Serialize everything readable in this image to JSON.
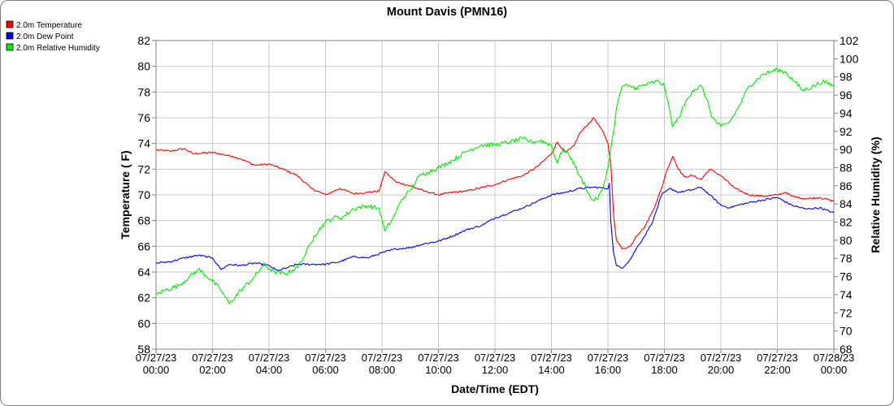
{
  "chart_data": {
    "type": "line",
    "title": "Mount Davis (PMN16)",
    "xlabel": "Date/Time (EDT)",
    "ylabel_left": "Temperature ( F)",
    "ylabel_right": "Relative Humidity (%)",
    "ylim_left": [
      58,
      82
    ],
    "yticks_left": [
      58,
      60,
      62,
      64,
      66,
      68,
      70,
      72,
      74,
      76,
      78,
      80,
      82
    ],
    "ylim_right": [
      68,
      102
    ],
    "yticks_right": [
      68,
      70,
      72,
      74,
      76,
      78,
      80,
      82,
      84,
      86,
      88,
      90,
      92,
      94,
      96,
      98,
      100,
      102
    ],
    "xlim_hours": [
      0,
      24
    ],
    "xticks": [
      {
        "hour": 0,
        "date": "07/27/23",
        "time": "00:00"
      },
      {
        "hour": 2,
        "date": "07/27/23",
        "time": "02:00"
      },
      {
        "hour": 4,
        "date": "07/27/23",
        "time": "04:00"
      },
      {
        "hour": 6,
        "date": "07/27/23",
        "time": "06:00"
      },
      {
        "hour": 8,
        "date": "07/27/23",
        "time": "08:00"
      },
      {
        "hour": 10,
        "date": "07/27/23",
        "time": "10:00"
      },
      {
        "hour": 12,
        "date": "07/27/23",
        "time": "12:00"
      },
      {
        "hour": 14,
        "date": "07/27/23",
        "time": "14:00"
      },
      {
        "hour": 16,
        "date": "07/27/23",
        "time": "16:00"
      },
      {
        "hour": 18,
        "date": "07/27/23",
        "time": "18:00"
      },
      {
        "hour": 20,
        "date": "07/27/23",
        "time": "20:00"
      },
      {
        "hour": 22,
        "date": "07/27/23",
        "time": "22:00"
      },
      {
        "hour": 24,
        "date": "07/28/23",
        "time": "00:00"
      }
    ],
    "grid": true,
    "legend_position": "top-left",
    "series": [
      {
        "name": "2.0m Temperature",
        "axis": "left",
        "color": "#ff0000",
        "points": [
          [
            0,
            73.5
          ],
          [
            0.5,
            73.4
          ],
          [
            1,
            73.6
          ],
          [
            1.3,
            73.2
          ],
          [
            2,
            73.3
          ],
          [
            2.7,
            73.0
          ],
          [
            3,
            72.8
          ],
          [
            3.5,
            72.3
          ],
          [
            4,
            72.4
          ],
          [
            4.5,
            72.0
          ],
          [
            5,
            71.5
          ],
          [
            5.5,
            70.5
          ],
          [
            6,
            70.0
          ],
          [
            6.5,
            70.5
          ],
          [
            7,
            70.1
          ],
          [
            7.5,
            70.2
          ],
          [
            7.9,
            70.3
          ],
          [
            8.1,
            71.8
          ],
          [
            8.5,
            71.0
          ],
          [
            9,
            70.7
          ],
          [
            9.5,
            70.3
          ],
          [
            10,
            70.0
          ],
          [
            10.5,
            70.2
          ],
          [
            11,
            70.3
          ],
          [
            12,
            70.8
          ],
          [
            12.5,
            71.2
          ],
          [
            13,
            71.5
          ],
          [
            13.5,
            72.2
          ],
          [
            14,
            73.2
          ],
          [
            14.2,
            74.1
          ],
          [
            14.5,
            73.3
          ],
          [
            14.8,
            73.8
          ],
          [
            15,
            74.8
          ],
          [
            15.3,
            75.5
          ],
          [
            15.5,
            76.0
          ],
          [
            15.8,
            75.0
          ],
          [
            16.0,
            74.0
          ],
          [
            16.1,
            72.5
          ],
          [
            16.2,
            68.5
          ],
          [
            16.3,
            66.5
          ],
          [
            16.5,
            65.8
          ],
          [
            16.8,
            66.0
          ],
          [
            17,
            66.8
          ],
          [
            17.3,
            67.5
          ],
          [
            17.6,
            68.8
          ],
          [
            17.9,
            70.5
          ],
          [
            18.1,
            72.0
          ],
          [
            18.3,
            73.0
          ],
          [
            18.5,
            72.0
          ],
          [
            18.7,
            71.4
          ],
          [
            19,
            71.5
          ],
          [
            19.3,
            71.2
          ],
          [
            19.6,
            72.0
          ],
          [
            20,
            71.5
          ],
          [
            20.5,
            70.5
          ],
          [
            21,
            70.0
          ],
          [
            21.5,
            69.9
          ],
          [
            22,
            70.0
          ],
          [
            22.3,
            70.2
          ],
          [
            22.5,
            69.9
          ],
          [
            23,
            69.7
          ],
          [
            23.5,
            69.8
          ],
          [
            24,
            69.5
          ]
        ]
      },
      {
        "name": "2.0m Dew Point",
        "axis": "left",
        "color": "#0000ff",
        "points": [
          [
            0,
            64.7
          ],
          [
            0.5,
            64.8
          ],
          [
            1,
            65.1
          ],
          [
            1.5,
            65.3
          ],
          [
            2,
            65.1
          ],
          [
            2.3,
            64.2
          ],
          [
            2.6,
            64.6
          ],
          [
            3,
            64.5
          ],
          [
            3.5,
            64.7
          ],
          [
            4,
            64.5
          ],
          [
            4.3,
            64.1
          ],
          [
            4.6,
            64.3
          ],
          [
            5,
            64.6
          ],
          [
            5.5,
            64.6
          ],
          [
            6,
            64.6
          ],
          [
            6.5,
            64.8
          ],
          [
            7,
            65.2
          ],
          [
            7.5,
            65.1
          ],
          [
            8,
            65.5
          ],
          [
            8.5,
            65.8
          ],
          [
            9,
            65.9
          ],
          [
            9.5,
            66.2
          ],
          [
            10,
            66.4
          ],
          [
            10.5,
            66.8
          ],
          [
            11,
            67.3
          ],
          [
            11.5,
            67.6
          ],
          [
            12,
            68.2
          ],
          [
            12.5,
            68.6
          ],
          [
            13,
            69.0
          ],
          [
            13.5,
            69.5
          ],
          [
            14,
            70.0
          ],
          [
            14.5,
            70.2
          ],
          [
            15,
            70.5
          ],
          [
            15.5,
            70.6
          ],
          [
            16.0,
            70.5
          ],
          [
            16.05,
            70.9
          ],
          [
            16.1,
            68.0
          ],
          [
            16.2,
            65.5
          ],
          [
            16.3,
            64.5
          ],
          [
            16.5,
            64.3
          ],
          [
            16.8,
            65.0
          ],
          [
            17,
            65.8
          ],
          [
            17.3,
            66.8
          ],
          [
            17.6,
            68.0
          ],
          [
            17.9,
            70.0
          ],
          [
            18.2,
            70.5
          ],
          [
            18.5,
            70.2
          ],
          [
            19,
            70.4
          ],
          [
            19.3,
            70.6
          ],
          [
            19.6,
            70.0
          ],
          [
            20,
            69.2
          ],
          [
            20.3,
            69.0
          ],
          [
            20.6,
            69.2
          ],
          [
            21,
            69.4
          ],
          [
            21.5,
            69.6
          ],
          [
            22,
            69.8
          ],
          [
            22.5,
            69.2
          ],
          [
            23,
            68.9
          ],
          [
            23.5,
            69.0
          ],
          [
            24,
            68.6
          ]
        ]
      },
      {
        "name": "2.0m Relative Humidity",
        "axis": "right",
        "color": "#00ee00",
        "points": [
          [
            0,
            74.0
          ],
          [
            0.3,
            74.5
          ],
          [
            0.8,
            75.0
          ],
          [
            1.2,
            76.0
          ],
          [
            1.5,
            76.8
          ],
          [
            2,
            75.5
          ],
          [
            2.3,
            74.5
          ],
          [
            2.6,
            73.0
          ],
          [
            3,
            74.5
          ],
          [
            3.5,
            76.0
          ],
          [
            3.8,
            77.3
          ],
          [
            4.2,
            76.5
          ],
          [
            4.6,
            76.3
          ],
          [
            5,
            77.0
          ],
          [
            5.3,
            78.5
          ],
          [
            5.6,
            80.5
          ],
          [
            6,
            82.0
          ],
          [
            6.3,
            82.5
          ],
          [
            6.6,
            82.5
          ],
          [
            7,
            83.5
          ],
          [
            7.5,
            83.8
          ],
          [
            7.9,
            83.5
          ],
          [
            8.1,
            81.0
          ],
          [
            8.4,
            82.5
          ],
          [
            8.7,
            84.5
          ],
          [
            9,
            85.5
          ],
          [
            9.3,
            87.0
          ],
          [
            9.6,
            87.5
          ],
          [
            10,
            88.0
          ],
          [
            10.5,
            88.8
          ],
          [
            11,
            89.8
          ],
          [
            11.5,
            90.5
          ],
          [
            12,
            90.5
          ],
          [
            12.5,
            90.8
          ],
          [
            13,
            91.2
          ],
          [
            13.3,
            90.8
          ],
          [
            13.6,
            91.0
          ],
          [
            14,
            90.5
          ],
          [
            14.2,
            88.5
          ],
          [
            14.4,
            90.0
          ],
          [
            14.6,
            89.5
          ],
          [
            14.8,
            88.5
          ],
          [
            15,
            87.0
          ],
          [
            15.2,
            86.0
          ],
          [
            15.4,
            84.5
          ],
          [
            15.6,
            84.5
          ],
          [
            15.8,
            85.5
          ],
          [
            16.0,
            88.0
          ],
          [
            16.1,
            90.0
          ],
          [
            16.2,
            92.0
          ],
          [
            16.3,
            94.5
          ],
          [
            16.5,
            97.0
          ],
          [
            16.7,
            97.0
          ],
          [
            17,
            96.8
          ],
          [
            17.5,
            97.3
          ],
          [
            17.8,
            97.5
          ],
          [
            18.0,
            97.0
          ],
          [
            18.1,
            95.5
          ],
          [
            18.3,
            92.5
          ],
          [
            18.5,
            93.5
          ],
          [
            18.8,
            95.5
          ],
          [
            19,
            96.5
          ],
          [
            19.3,
            97.0
          ],
          [
            19.5,
            95.5
          ],
          [
            19.7,
            93.5
          ],
          [
            20,
            92.5
          ],
          [
            20.3,
            93.0
          ],
          [
            20.6,
            94.5
          ],
          [
            21,
            97.0
          ],
          [
            21.5,
            98.3
          ],
          [
            22,
            98.8
          ],
          [
            22.3,
            98.5
          ],
          [
            22.6,
            97.5
          ],
          [
            22.9,
            96.5
          ],
          [
            23.3,
            97.0
          ],
          [
            23.6,
            97.5
          ],
          [
            24,
            97.0
          ]
        ]
      }
    ]
  }
}
